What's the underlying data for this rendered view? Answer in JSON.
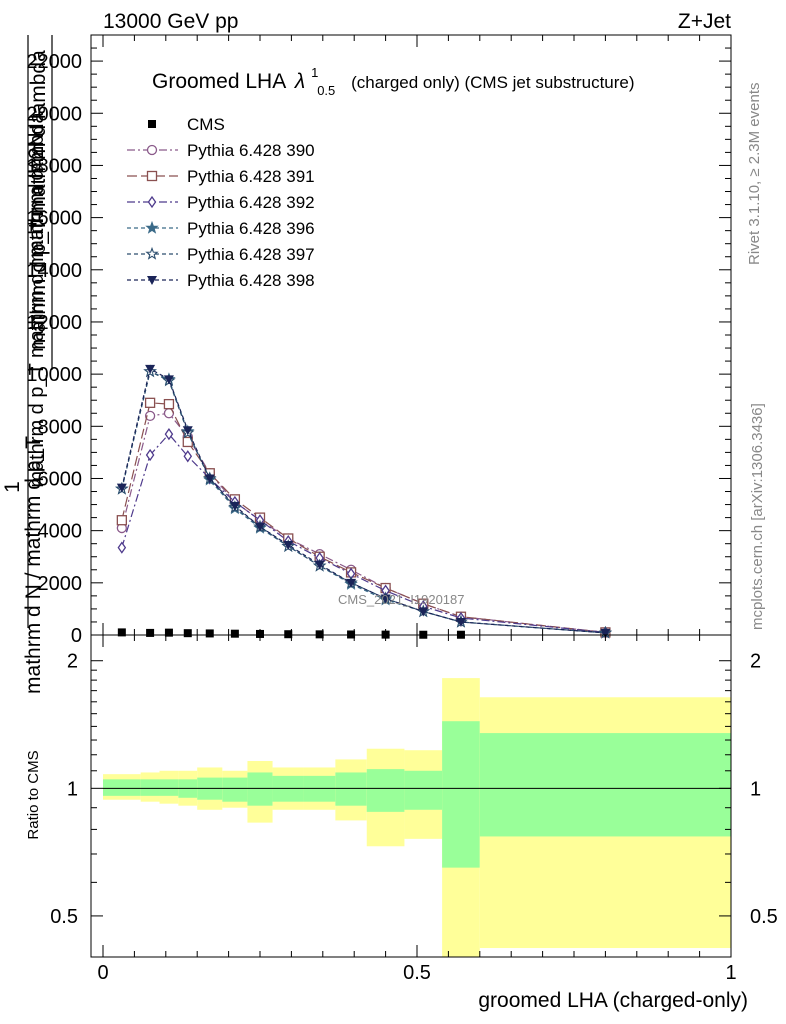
{
  "header": {
    "left": "13000 GeV pp",
    "right": "Z+Jet"
  },
  "side_labels": {
    "rivet": "Rivet 3.1.10, ≥ 2.3M events",
    "mcplots": "mcplots.cern.ch [arXiv:1306.3436]"
  },
  "watermark": "CMS_2021_I1920187",
  "chart_data": [
    {
      "type": "line",
      "title_main": "Groomed LHA",
      "title_symbol": "λ",
      "title_sup": "1",
      "title_sub": "0.5",
      "title_rest": "(charged only) (CMS jet substructure)",
      "ylabel_top": "1",
      "ylabel_bottom": "mathrm d N / mathrm d p_T",
      "ylabel_num": "mathrm d^2N",
      "ylabel_den": "mathrm d p_T mathrm d lambda",
      "ylabel_overlay": "mathrm d p_T mathrm d mathrm d lambda",
      "xlim": [
        0,
        1
      ],
      "ylim": [
        0,
        23000
      ],
      "yticks": [
        0,
        2000,
        4000,
        6000,
        8000,
        10000,
        12000,
        14000,
        16000,
        18000,
        20000,
        22000
      ],
      "ytick_labels": [
        "0",
        "2000",
        "4000",
        "6000",
        "8000",
        "10000",
        "12000",
        "14000",
        "16000",
        "18000",
        "20000",
        "22000"
      ],
      "x": [
        0.03,
        0.075,
        0.105,
        0.135,
        0.17,
        0.21,
        0.25,
        0.295,
        0.345,
        0.395,
        0.45,
        0.51,
        0.57,
        0.8
      ],
      "series": [
        {
          "name": "CMS",
          "color": "#000000",
          "marker": "filled-square",
          "dash": "none",
          "values": [
            100,
            80,
            90,
            70,
            60,
            50,
            40,
            30,
            25,
            20,
            15,
            10,
            10,
            null
          ]
        },
        {
          "name": "Pythia 6.428 390",
          "color": "#8a5a8a",
          "marker": "open-circle",
          "dash": "8,3,2,3",
          "values": [
            4100,
            8400,
            8500,
            7600,
            6200,
            5100,
            4400,
            3700,
            3100,
            2500,
            1800,
            1200,
            700,
            100
          ]
        },
        {
          "name": "Pythia 6.428 391",
          "color": "#8a5050",
          "marker": "open-square",
          "dash": "10,4",
          "values": [
            4400,
            8900,
            8850,
            7400,
            6200,
            5200,
            4500,
            3700,
            3000,
            2400,
            1800,
            1200,
            700,
            100
          ]
        },
        {
          "name": "Pythia 6.428 392",
          "color": "#4e3a8c",
          "marker": "open-diamond",
          "dash": "8,3,2,3",
          "values": [
            3350,
            6900,
            7700,
            6850,
            6000,
            5100,
            4400,
            3600,
            2950,
            2350,
            1700,
            1100,
            650,
            100
          ]
        },
        {
          "name": "Pythia 6.428 396",
          "color": "#3a6a88",
          "marker": "filled-star",
          "dash": "4,3",
          "values": [
            5600,
            10100,
            9800,
            7800,
            5950,
            4850,
            4100,
            3400,
            2650,
            1950,
            1350,
            900,
            500,
            80
          ]
        },
        {
          "name": "Pythia 6.428 397",
          "color": "#2c4e6e",
          "marker": "open-star",
          "dash": "4,3",
          "values": [
            5600,
            10100,
            9750,
            7750,
            6000,
            4900,
            4150,
            3400,
            2650,
            2000,
            1400,
            900,
            500,
            80
          ]
        },
        {
          "name": "Pythia 6.428 398",
          "color": "#1a2458",
          "marker": "filled-triangle-down",
          "dash": "4,3",
          "values": [
            5650,
            10200,
            9800,
            7850,
            6000,
            4950,
            4150,
            3450,
            2700,
            2000,
            1400,
            900,
            500,
            80
          ]
        }
      ]
    },
    {
      "type": "area",
      "ylabel": "Ratio to CMS",
      "xlabel": "groomed LHA (charged-only)",
      "xlim": [
        0,
        1
      ],
      "ylim": [
        0.4,
        2.3
      ],
      "yscale": "log",
      "xticks": [
        0,
        0.5,
        1
      ],
      "xtick_labels": [
        "0",
        "0.5",
        "1"
      ],
      "yticks": [
        0.5,
        1,
        2
      ],
      "ytick_labels": [
        "0.5",
        "1",
        "2"
      ],
      "reference": 1,
      "bins": [
        {
          "x0": 0.0,
          "x1": 0.06,
          "stat_lo": 0.96,
          "stat_hi": 1.05,
          "tot_lo": 0.94,
          "tot_hi": 1.08
        },
        {
          "x0": 0.06,
          "x1": 0.09,
          "stat_lo": 0.96,
          "stat_hi": 1.05,
          "tot_lo": 0.93,
          "tot_hi": 1.09
        },
        {
          "x0": 0.09,
          "x1": 0.12,
          "stat_lo": 0.96,
          "stat_hi": 1.05,
          "tot_lo": 0.92,
          "tot_hi": 1.1
        },
        {
          "x0": 0.12,
          "x1": 0.15,
          "stat_lo": 0.95,
          "stat_hi": 1.05,
          "tot_lo": 0.91,
          "tot_hi": 1.1
        },
        {
          "x0": 0.15,
          "x1": 0.19,
          "stat_lo": 0.94,
          "stat_hi": 1.06,
          "tot_lo": 0.89,
          "tot_hi": 1.12
        },
        {
          "x0": 0.19,
          "x1": 0.23,
          "stat_lo": 0.93,
          "stat_hi": 1.06,
          "tot_lo": 0.9,
          "tot_hi": 1.1
        },
        {
          "x0": 0.23,
          "x1": 0.27,
          "stat_lo": 0.91,
          "stat_hi": 1.09,
          "tot_lo": 0.83,
          "tot_hi": 1.16
        },
        {
          "x0": 0.27,
          "x1": 0.32,
          "stat_lo": 0.93,
          "stat_hi": 1.07,
          "tot_lo": 0.89,
          "tot_hi": 1.12
        },
        {
          "x0": 0.32,
          "x1": 0.37,
          "stat_lo": 0.93,
          "stat_hi": 1.07,
          "tot_lo": 0.89,
          "tot_hi": 1.12
        },
        {
          "x0": 0.37,
          "x1": 0.42,
          "stat_lo": 0.91,
          "stat_hi": 1.09,
          "tot_lo": 0.84,
          "tot_hi": 1.17
        },
        {
          "x0": 0.42,
          "x1": 0.48,
          "stat_lo": 0.88,
          "stat_hi": 1.11,
          "tot_lo": 0.73,
          "tot_hi": 1.24
        },
        {
          "x0": 0.48,
          "x1": 0.54,
          "stat_lo": 0.89,
          "stat_hi": 1.1,
          "tot_lo": 0.76,
          "tot_hi": 1.23
        },
        {
          "x0": 0.54,
          "x1": 0.6,
          "stat_lo": 0.65,
          "stat_hi": 1.44,
          "tot_lo": 0.4,
          "tot_hi": 1.82
        },
        {
          "x0": 0.6,
          "x1": 1.0,
          "stat_lo": 0.77,
          "stat_hi": 1.35,
          "tot_lo": 0.42,
          "tot_hi": 1.64
        }
      ],
      "stat_color": "#99ff99",
      "tot_color": "#ffff99"
    }
  ]
}
